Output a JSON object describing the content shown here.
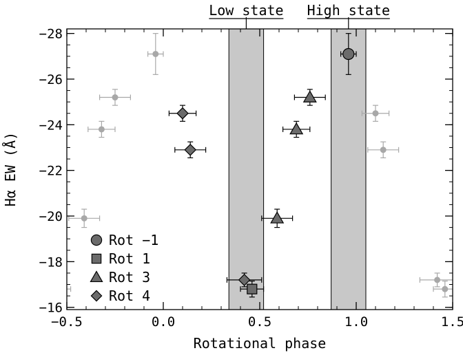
{
  "chart_data": {
    "type": "scatter",
    "xlabel": "Rotational phase",
    "ylabel": "Hα EW (Å)",
    "xlim": [
      -0.5,
      1.5
    ],
    "ylim": [
      -15.9,
      -28.2
    ],
    "y_axis_inverted": true,
    "x_ticks": [
      {
        "value": -0.5,
        "label": "−0.5"
      },
      {
        "value": 0.0,
        "label": "0.0"
      },
      {
        "value": 0.5,
        "label": "0.5"
      },
      {
        "value": 1.0,
        "label": "1.0"
      },
      {
        "value": 1.5,
        "label": "1.5"
      }
    ],
    "y_ticks": [
      {
        "value": -16,
        "label": "−16"
      },
      {
        "value": -18,
        "label": "−18"
      },
      {
        "value": -20,
        "label": "−20"
      },
      {
        "value": -22,
        "label": "−22"
      },
      {
        "value": -24,
        "label": "−24"
      },
      {
        "value": -26,
        "label": "−26"
      },
      {
        "value": -28,
        "label": "−28"
      }
    ],
    "x_minor_step": 0.1,
    "y_minor_step": 0.5,
    "shaded_regions": [
      {
        "label": "Low state",
        "x0": 0.34,
        "x1": 0.52,
        "color": "#c8c8c8"
      },
      {
        "label": "High state",
        "x0": 0.87,
        "x1": 1.05,
        "color": "#c8c8c8"
      }
    ],
    "series": [
      {
        "name": "Rot −1",
        "marker": "circle",
        "color": "#6b6b6b",
        "points": [
          {
            "x": 0.96,
            "y": -27.1,
            "xerr": 0.04,
            "yerr": 0.9
          }
        ]
      },
      {
        "name": "Rot 1",
        "marker": "square",
        "color": "#6b6b6b",
        "points": [
          {
            "x": 0.46,
            "y": -16.8,
            "xerr": 0.06,
            "yerr": 0.35
          }
        ]
      },
      {
        "name": "Rot 3",
        "marker": "triangle",
        "color": "#6b6b6b",
        "points": [
          {
            "x": 0.59,
            "y": -19.9,
            "xerr": 0.08,
            "yerr": 0.4
          },
          {
            "x": 0.69,
            "y": -23.8,
            "xerr": 0.07,
            "yerr": 0.35
          },
          {
            "x": 0.76,
            "y": -25.2,
            "xerr": 0.08,
            "yerr": 0.35
          }
        ]
      },
      {
        "name": "Rot 4",
        "marker": "diamond",
        "color": "#6b6b6b",
        "points": [
          {
            "x": 0.1,
            "y": -24.5,
            "xerr": 0.07,
            "yerr": 0.35
          },
          {
            "x": 0.14,
            "y": -22.9,
            "xerr": 0.08,
            "yerr": 0.35
          },
          {
            "x": 0.42,
            "y": -17.2,
            "xerr": 0.09,
            "yerr": 0.3
          }
        ]
      },
      {
        "name": "",
        "marker": "dot",
        "color": "#a8a8a8",
        "points": [
          {
            "x": -0.04,
            "y": -27.1,
            "xerr": 0.04,
            "yerr": 0.9
          },
          {
            "x": -0.25,
            "y": -25.2,
            "xerr": 0.08,
            "yerr": 0.35
          },
          {
            "x": -0.32,
            "y": -23.8,
            "xerr": 0.07,
            "yerr": 0.35
          },
          {
            "x": -0.41,
            "y": -19.9,
            "xerr": 0.08,
            "yerr": 0.4
          },
          {
            "x": -0.54,
            "y": -16.8,
            "xerr": 0.06,
            "yerr": 0.35
          },
          {
            "x": 1.1,
            "y": -24.5,
            "xerr": 0.07,
            "yerr": 0.35
          },
          {
            "x": 1.14,
            "y": -22.9,
            "xerr": 0.08,
            "yerr": 0.35
          },
          {
            "x": 1.42,
            "y": -17.2,
            "xerr": 0.09,
            "yerr": 0.3
          },
          {
            "x": 1.46,
            "y": -16.8,
            "xerr": 0.06,
            "yerr": 0.35
          }
        ]
      }
    ],
    "legend": {
      "position": "lower-left",
      "entries": [
        "Rot −1",
        "Rot 1",
        "Rot 3",
        "Rot 4"
      ]
    }
  }
}
